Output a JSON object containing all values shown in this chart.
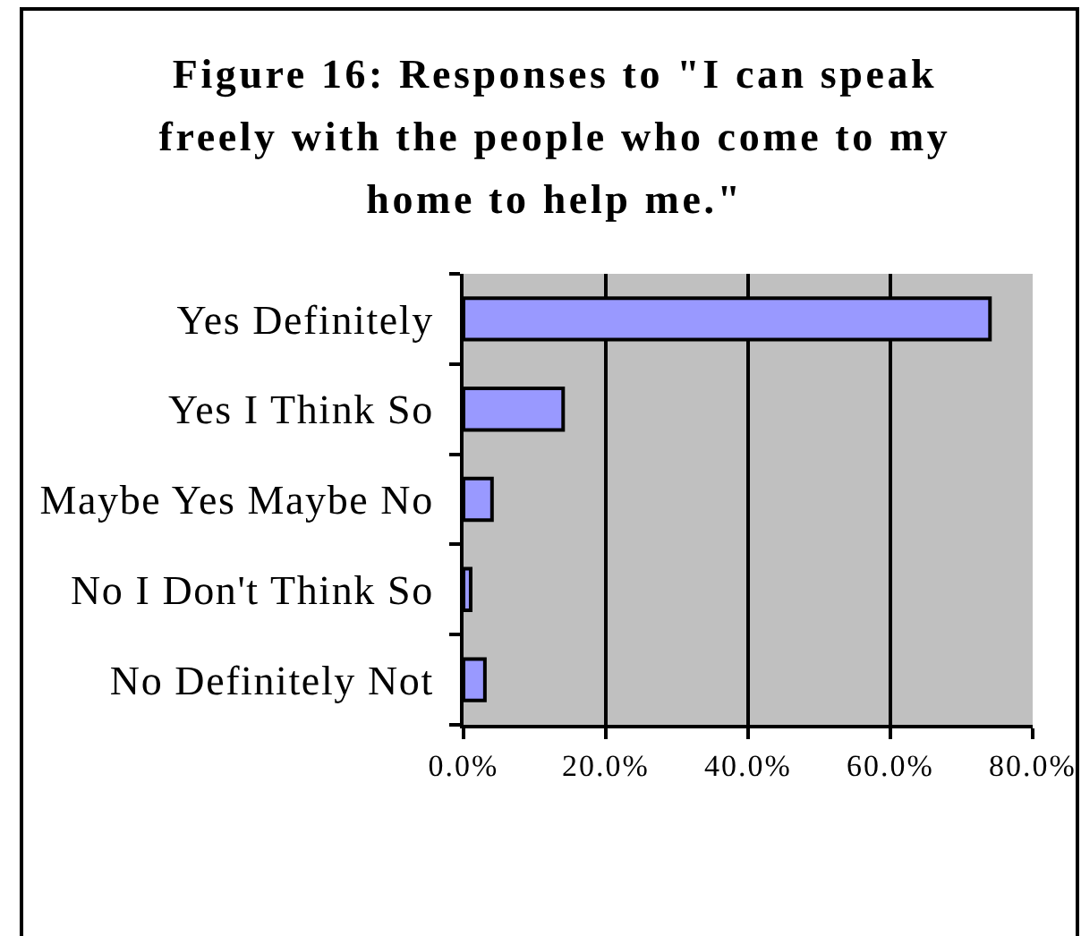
{
  "chart_data": {
    "type": "bar",
    "orientation": "horizontal",
    "title": "Figure 16: Responses to \"I can speak freely with the people who come to my home to help me.\"",
    "categories": [
      "Yes Definitely",
      "Yes I Think So",
      "Maybe Yes Maybe No",
      "No I Don't Think So",
      "No Definitely Not"
    ],
    "values": [
      74,
      14,
      4,
      1,
      3
    ],
    "color": "#9999ff",
    "xlim": [
      0,
      80
    ],
    "xticks": [
      {
        "value": 0,
        "label": "0.0%"
      },
      {
        "value": 20,
        "label": "20.0%"
      },
      {
        "value": 40,
        "label": "40.0%"
      },
      {
        "value": 60,
        "label": "60.0%"
      },
      {
        "value": 80,
        "label": "80.0%"
      }
    ],
    "grid": "x"
  }
}
